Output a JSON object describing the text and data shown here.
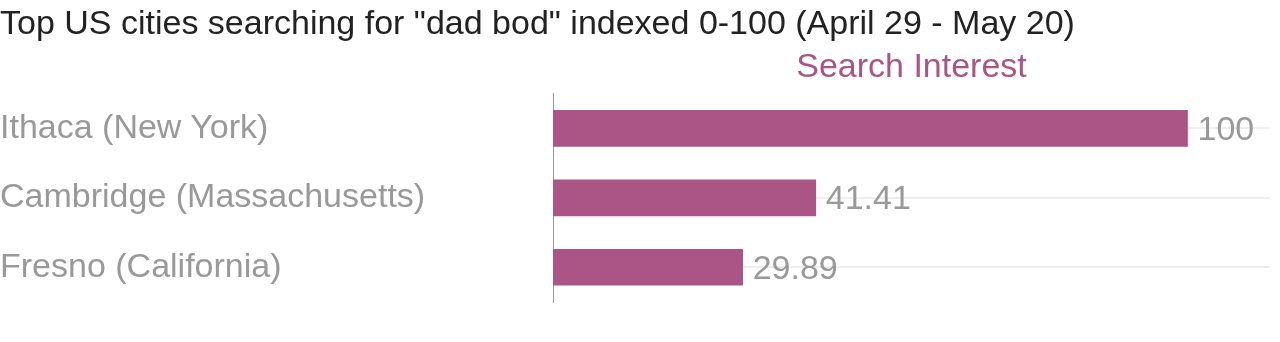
{
  "chart_data": {
    "type": "bar",
    "orientation": "horizontal",
    "title": "Top US cities searching for \"dad bod\" indexed 0-100 (April 29 - May 20)",
    "xlabel": "Search Interest",
    "categories": [
      "Ithaca (New York)",
      "Cambridge (Massachusetts)",
      "Fresno (California)"
    ],
    "values": [
      100,
      41.41,
      29.89
    ],
    "color": "#aa5585",
    "xlim": [
      0,
      113
    ],
    "data_labels": true,
    "grid": "y",
    "tick_labels": "y",
    "legend": false
  }
}
